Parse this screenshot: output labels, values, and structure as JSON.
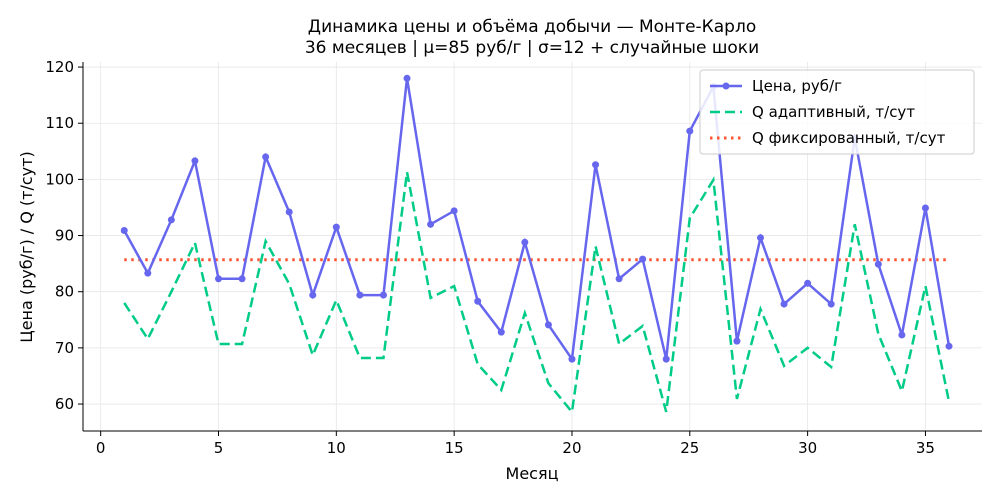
{
  "chart_data": {
    "type": "line",
    "title": "Динамика цены и объёма добычи — Монте-Карло",
    "subtitle": "36 месяцев | μ=85 руб/г | σ=12 + случайные шоки",
    "xlabel": "Месяц",
    "ylabel": "Цена (руб/г) / Q (т/сут)",
    "xlim": [
      -0.75,
      37.4
    ],
    "ylim": [
      55.2,
      120.9
    ],
    "xticks": [
      0,
      5,
      10,
      15,
      20,
      25,
      30,
      35
    ],
    "yticks": [
      60,
      70,
      80,
      90,
      100,
      110,
      120
    ],
    "grid": true,
    "legend_position": "top-right",
    "x": [
      1,
      2,
      3,
      4,
      5,
      6,
      7,
      8,
      9,
      10,
      11,
      12,
      13,
      14,
      15,
      16,
      17,
      18,
      19,
      20,
      21,
      22,
      23,
      24,
      25,
      26,
      27,
      28,
      29,
      30,
      31,
      32,
      33,
      34,
      35,
      36
    ],
    "series": [
      {
        "name": "Цена, руб/г",
        "color": "#6666ee",
        "style": "solid-markers",
        "values": [
          90.9,
          83.3,
          92.8,
          103.3,
          82.3,
          82.3,
          104.0,
          94.2,
          79.4,
          91.5,
          79.4,
          79.4,
          118.0,
          92.0,
          94.4,
          78.3,
          72.8,
          88.8,
          74.1,
          68.0,
          102.6,
          82.3,
          85.8,
          68.0,
          108.6,
          116.5,
          71.2,
          89.6,
          77.8,
          81.5,
          77.8,
          107.4,
          84.9,
          72.3,
          94.9,
          70.3
        ]
      },
      {
        "name": "Q адаптивный, т/сут",
        "color": "#00cc88",
        "style": "dashed",
        "values": [
          78.0,
          71.6,
          80.0,
          88.7,
          70.7,
          70.7,
          89.0,
          81.4,
          68.7,
          78.5,
          68.2,
          68.2,
          101.3,
          78.9,
          81.0,
          67.1,
          62.5,
          76.2,
          63.7,
          58.6,
          88.1,
          70.7,
          73.9,
          58.6,
          93.1,
          99.9,
          60.9,
          76.9,
          66.8,
          70.0,
          66.6,
          92.0,
          72.5,
          62.3,
          81.0,
          60.4
        ]
      },
      {
        "name": "Q фиксированный, т/сут",
        "color": "#ff5533",
        "style": "dotted",
        "values": [
          85.7,
          85.7,
          85.7,
          85.7,
          85.7,
          85.7,
          85.7,
          85.7,
          85.7,
          85.7,
          85.7,
          85.7,
          85.7,
          85.7,
          85.7,
          85.7,
          85.7,
          85.7,
          85.7,
          85.7,
          85.7,
          85.7,
          85.7,
          85.7,
          85.7,
          85.7,
          85.7,
          85.7,
          85.7,
          85.7,
          85.7,
          85.7,
          85.7,
          85.7,
          85.7,
          85.7
        ]
      }
    ]
  }
}
